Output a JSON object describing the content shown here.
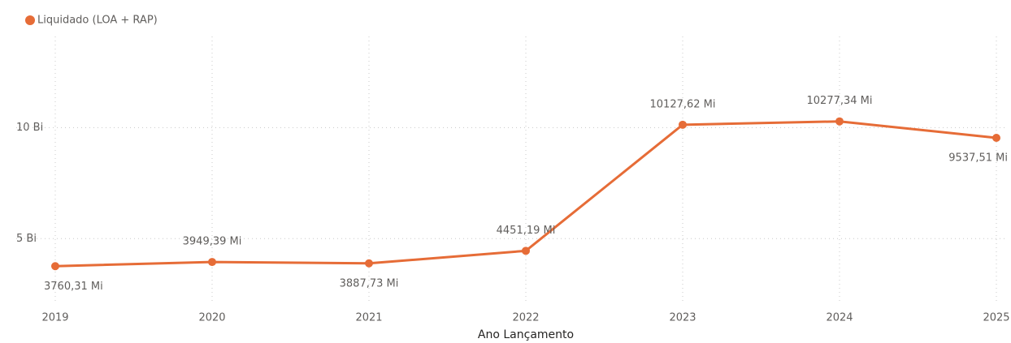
{
  "chart_data": {
    "type": "line",
    "series": [
      {
        "name": "Liquidado (LOA + RAP)",
        "color": "#e66c37",
        "values": [
          3.76031,
          3.94939,
          3.88773,
          4.45119,
          10.12762,
          10.27734,
          9.53751
        ],
        "value_labels": [
          "3760,31 Mi",
          "3949,39 Mi",
          "3887,73 Mi",
          "4451,19 Mi",
          "10127,62 Mi",
          "10277,34 Mi",
          "9537,51 Mi"
        ]
      }
    ],
    "categories": [
      "2019",
      "2020",
      "2021",
      "2022",
      "2023",
      "2024",
      "2025"
    ],
    "x_label": "Ano Lançamento",
    "ylim": [
      2.2,
      14.1
    ],
    "yticks": [
      {
        "value": 5,
        "label": "5 Bi"
      },
      {
        "value": 10,
        "label": "10 Bi"
      }
    ],
    "grid": true,
    "legend": "top-left"
  }
}
